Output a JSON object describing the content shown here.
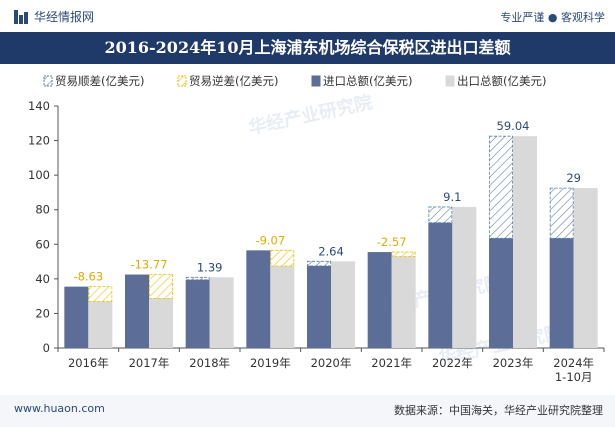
{
  "header": {
    "brand": "华经情报网",
    "tagline": "专业严谨 ● 客观科学",
    "title": "2016-2024年10月上海浦东机场综合保税区进出口差额"
  },
  "footer": {
    "site": "www.huaon.com",
    "source": "数据来源：中国海关，华经产业研究院整理"
  },
  "watermark": "华经产业研究院",
  "colors": {
    "import": "#5c6e98",
    "export": "#d9d9d9",
    "surplus": "#5b7fa8",
    "deficit": "#f0c000",
    "label_surplus": "#2b4a78",
    "label_deficit": "#e6a800",
    "title_bg": "#1f3a68"
  },
  "chart_data": {
    "type": "bar",
    "categories": [
      "2016年",
      "2017年",
      "2018年",
      "2019年",
      "2020年",
      "2021年",
      "2022年",
      "2023年",
      "2024年\n1-10月"
    ],
    "series": [
      {
        "name": "进口总额(亿美元)",
        "values": [
          35.5,
          42.5,
          39.5,
          56.5,
          47.5,
          55.5,
          72.5,
          63.5,
          63.5
        ]
      },
      {
        "name": "出口总额(亿美元)",
        "values": [
          26.87,
          28.73,
          40.89,
          47.43,
          50.14,
          52.93,
          81.6,
          122.54,
          92.5
        ]
      }
    ],
    "balance": {
      "name_surplus": "贸易顺差(亿美元)",
      "name_deficit": "贸易逆差(亿美元)",
      "values": [
        -8.63,
        -13.77,
        1.39,
        -9.07,
        2.64,
        -2.57,
        9.1,
        59.04,
        29
      ],
      "labels": [
        "-8.63",
        "-13.77",
        "1.39",
        "-9.07",
        "2.64",
        "-2.57",
        "9.1",
        "59.04",
        "29"
      ]
    },
    "title": "2016-2024年10月上海浦东机场综合保税区进出口差额",
    "xlabel": "",
    "ylabel": "",
    "ylim": [
      0,
      140
    ],
    "yticks": [
      0,
      20,
      40,
      60,
      80,
      100,
      120,
      140
    ],
    "legend_position": "top"
  }
}
